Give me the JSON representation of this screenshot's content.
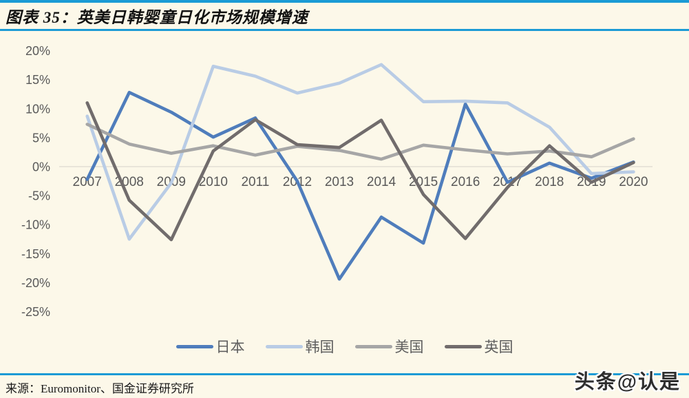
{
  "page": {
    "background": "#FCF8E9",
    "accent_blue": "#1B9BD5"
  },
  "header": {
    "title": "图表 35：英美日韩婴童日化市场规模增速"
  },
  "chart_data": {
    "type": "line",
    "title": "英美日韩婴童日化市场规模增速",
    "categories": [
      "2007",
      "2008",
      "2009",
      "2010",
      "2011",
      "2012",
      "2013",
      "2014",
      "2015",
      "2016",
      "2017",
      "2018",
      "2019",
      "2020"
    ],
    "series": [
      {
        "key": "japan",
        "name": "日本",
        "color": "#4F7DBC",
        "values": [
          -2.2,
          12.8,
          9.4,
          5.1,
          8.4,
          -2.5,
          -19.4,
          -8.7,
          -13.2,
          10.8,
          -2.7,
          0.6,
          -2.0,
          0.8
        ]
      },
      {
        "key": "korea",
        "name": "韩国",
        "color": "#B9CCE5",
        "values": [
          8.7,
          -12.5,
          -2.8,
          17.3,
          15.6,
          12.7,
          14.4,
          17.6,
          11.2,
          11.3,
          11.0,
          6.8,
          -1.2,
          -0.9
        ]
      },
      {
        "key": "usa",
        "name": "美国",
        "color": "#A6A6A6",
        "values": [
          7.3,
          3.9,
          2.3,
          3.6,
          2.0,
          3.5,
          2.8,
          1.3,
          3.7,
          2.9,
          2.2,
          2.7,
          1.7,
          4.8
        ]
      },
      {
        "key": "uk",
        "name": "英国",
        "color": "#716C6C",
        "values": [
          11.0,
          -5.8,
          -12.6,
          2.7,
          8.1,
          3.8,
          3.3,
          8.0,
          -4.8,
          -12.4,
          -3.6,
          3.6,
          -2.7,
          0.7
        ]
      }
    ],
    "ylim": [
      -25,
      20
    ],
    "ytick_values": [
      20,
      15,
      10,
      5,
      0,
      -5,
      -10,
      -15,
      -20,
      -25
    ],
    "ytick_labels": [
      "20%",
      "15%",
      "10%",
      "5%",
      "0%",
      "-5%",
      "-10%",
      "-15%",
      "-20%",
      "-25%"
    ],
    "grid": "zero-line-only",
    "zero_line_color": "#DBD8D0",
    "axis_label_color": "#595959",
    "legend_position": "bottom"
  },
  "footer": {
    "source": "来源：Euromonitor、国金证券研究所",
    "watermark": "头条@认是"
  }
}
